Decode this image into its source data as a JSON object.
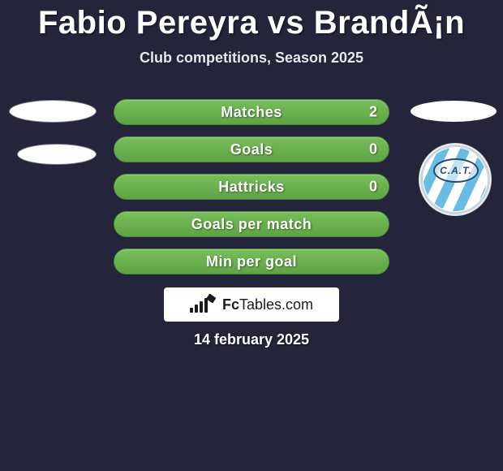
{
  "title": "Fabio Pereyra vs BrandÃ¡n",
  "subtitle": "Club competitions, Season 2025",
  "date": "14 february 2025",
  "brand": {
    "prefix": "Fc",
    "name": "Tables",
    "suffix": ".com"
  },
  "club_monogram": "C.A.T.",
  "colors": {
    "background": "#24253a",
    "row_gradient_from": "#77bf59",
    "row_gradient_to": "#5fa345",
    "row_border": "#4a8c33",
    "badge_stripe": "#69bce3",
    "badge_ring": "#28486c",
    "text": "#ffffff"
  },
  "rows": [
    {
      "label": "Matches",
      "right": "2"
    },
    {
      "label": "Goals",
      "right": "0"
    },
    {
      "label": "Hattricks",
      "right": "0"
    },
    {
      "label": "Goals per match",
      "right": ""
    },
    {
      "label": "Min per goal",
      "right": ""
    }
  ]
}
